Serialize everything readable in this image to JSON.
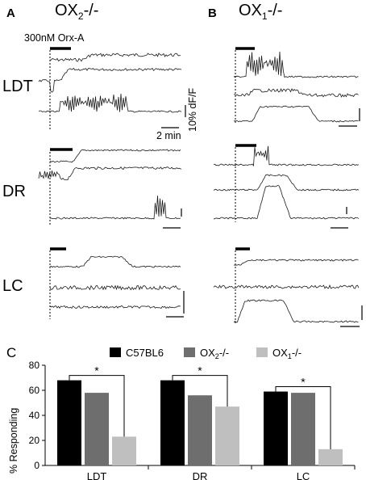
{
  "panel_labels": {
    "a": "A",
    "b": "B",
    "c": "C"
  },
  "genotype_a": {
    "base": "OX",
    "sub": "2",
    "suffix": "-/-"
  },
  "genotype_b": {
    "base": "OX",
    "sub": "1",
    "suffix": "-/-"
  },
  "stimulus_label": "300nM Orx-A",
  "region_labels": [
    "LDT",
    "DR",
    "LC"
  ],
  "scale_y_label": "10% dF/F",
  "scale_x_label": "2 min",
  "colors": {
    "black": "#000000",
    "dark_gray": "#6e6e6e",
    "light_gray": "#bfbfbf",
    "trace": "#1a1a1a"
  },
  "chart_data": {
    "type": "bar",
    "title": "",
    "ylabel": "% Responding",
    "xlabel": "",
    "categories": [
      "LDT",
      "DR",
      "LC"
    ],
    "ylim": [
      0,
      80
    ],
    "yticks": [
      0,
      20,
      40,
      60,
      80
    ],
    "legend_position": "top",
    "grid": false,
    "series": [
      {
        "name": "C57BL6",
        "color": "#000000",
        "values": [
          68,
          68,
          59
        ]
      },
      {
        "name": "OX",
        "name_sub": "2",
        "name_suffix": "-/-",
        "color": "#6e6e6e",
        "values": [
          58,
          56,
          58
        ]
      },
      {
        "name": "OX",
        "name_sub": "1",
        "name_suffix": "-/-",
        "color": "#bfbfbf",
        "values": [
          23,
          47,
          13
        ]
      }
    ],
    "significance": [
      {
        "category": "LDT",
        "from_series": 0,
        "to_series": 2,
        "label": "*"
      },
      {
        "category": "DR",
        "from_series": 0,
        "to_series": 2,
        "label": "*"
      },
      {
        "category": "LC",
        "from_series": 0,
        "to_series": 2,
        "label": "*"
      }
    ]
  }
}
